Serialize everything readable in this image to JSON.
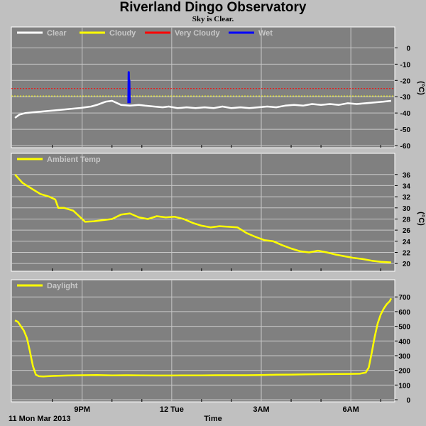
{
  "header": {
    "title": "Riverland Dingo Observatory",
    "subtitle": "Sky is Clear."
  },
  "footer": {
    "date_label": "11 Mon Mar 2013",
    "time_label": "Time"
  },
  "colors": {
    "panel_bg": "#808080",
    "grid": "#c8c8c8",
    "frame": "#c0c0c0",
    "clear": "#ffffff",
    "cloudy": "#ffff00",
    "very_cloudy": "#ff0000",
    "wet": "#0000ff",
    "temp": "#ffff00",
    "daylight": "#ffff00"
  },
  "x_axis": {
    "start_hour": 18.7,
    "end_hour": 31.4,
    "ticks": [
      {
        "hour": 21,
        "label": "9PM"
      },
      {
        "hour": 24,
        "label": "12 Tue"
      },
      {
        "hour": 27,
        "label": "3AM"
      },
      {
        "hour": 30,
        "label": "6AM"
      }
    ],
    "minor_ticks": [
      20,
      22,
      23,
      25,
      26,
      28,
      29,
      31
    ]
  },
  "chart_data": [
    {
      "type": "line",
      "title": "",
      "ylabel": "(°C)",
      "ylim": [
        -60,
        5
      ],
      "yticks": [
        0,
        -10,
        -20,
        -30,
        -40,
        -50,
        -60
      ],
      "grid": true,
      "legend": "top-left",
      "legend_entries": [
        {
          "name": "Clear",
          "color": "#ffffff"
        },
        {
          "name": "Cloudy",
          "color": "#ffff00"
        },
        {
          "name": "Very Cloudy",
          "color": "#ff0000"
        },
        {
          "name": "Wet",
          "color": "#0000ff"
        }
      ],
      "thresholds": [
        {
          "name": "Very Cloudy",
          "value": -25,
          "color": "#ff0000"
        },
        {
          "name": "Cloudy",
          "value": -29.5,
          "color": "#ffff00"
        }
      ],
      "series": [
        {
          "name": "Clear",
          "color": "#ffffff",
          "x": [
            18.75,
            18.9,
            19.1,
            19.4,
            19.7,
            20.0,
            20.3,
            20.6,
            20.9,
            21.1,
            21.3,
            21.5,
            21.8,
            22.0,
            22.3,
            22.6,
            22.9,
            23.1,
            23.4,
            23.7,
            23.9,
            24.2,
            24.5,
            24.8,
            25.1,
            25.4,
            25.7,
            26.0,
            26.3,
            26.6,
            26.9,
            27.2,
            27.5,
            27.8,
            28.1,
            28.4,
            28.7,
            29.0,
            29.3,
            29.6,
            29.9,
            30.2,
            30.5,
            30.8,
            31.1,
            31.35
          ],
          "y": [
            -43,
            -41,
            -40,
            -39.5,
            -39,
            -38.5,
            -38,
            -37.5,
            -37,
            -36.5,
            -36,
            -35,
            -33,
            -32.5,
            -35,
            -35.5,
            -35,
            -35.5,
            -36,
            -36.5,
            -36,
            -37,
            -36.5,
            -37,
            -36.5,
            -37,
            -36,
            -37,
            -36.5,
            -37,
            -36.5,
            -36,
            -36.5,
            -35.5,
            -35,
            -35.5,
            -34.5,
            -35,
            -34.5,
            -35,
            -34,
            -34.5,
            -34,
            -33.5,
            -33,
            -32.5
          ]
        },
        {
          "name": "Wet",
          "color": "#0000ff",
          "x": [
            22.55,
            22.56,
            22.57,
            22.58,
            22.59
          ],
          "y": [
            -34,
            -15,
            -28,
            -20,
            -34
          ]
        }
      ]
    },
    {
      "type": "line",
      "title": "",
      "ylabel": "(°C)",
      "ylim": [
        19,
        37.5
      ],
      "yticks": [
        20,
        22,
        24,
        26,
        28,
        30,
        32,
        34,
        36
      ],
      "grid": true,
      "legend": "top-left",
      "legend_entries": [
        {
          "name": "Ambient Temp",
          "color": "#ffff00"
        }
      ],
      "series": [
        {
          "name": "Ambient Temp",
          "color": "#ffff00",
          "x": [
            18.75,
            19.0,
            19.3,
            19.6,
            19.9,
            20.1,
            20.2,
            20.4,
            20.7,
            20.9,
            21.1,
            21.4,
            21.7,
            22.0,
            22.3,
            22.6,
            22.9,
            23.2,
            23.5,
            23.8,
            24.1,
            24.4,
            24.7,
            25.0,
            25.3,
            25.6,
            25.9,
            26.2,
            26.5,
            26.8,
            27.1,
            27.4,
            27.7,
            28.0,
            28.3,
            28.6,
            28.9,
            29.2,
            29.5,
            29.8,
            30.1,
            30.4,
            30.7,
            31.0,
            31.35
          ],
          "y": [
            36,
            34.5,
            33.5,
            32.5,
            32,
            31.5,
            30,
            30,
            29.5,
            28.5,
            27.5,
            27.6,
            27.8,
            28,
            28.8,
            29,
            28.3,
            28,
            28.5,
            28.3,
            28.4,
            28,
            27.3,
            26.8,
            26.5,
            26.7,
            26.6,
            26.5,
            25.5,
            24.8,
            24.2,
            24,
            23.3,
            22.7,
            22.2,
            22,
            22.3,
            22,
            21.6,
            21.3,
            21,
            20.8,
            20.5,
            20.3,
            20.2
          ]
        }
      ]
    },
    {
      "type": "line",
      "title": "",
      "ylabel": "",
      "ylim": [
        0,
        730
      ],
      "yticks": [
        0,
        100,
        200,
        300,
        400,
        500,
        600,
        700
      ],
      "grid": true,
      "legend": "top-left",
      "legend_entries": [
        {
          "name": "Daylight",
          "color": "#ffff00"
        }
      ],
      "series": [
        {
          "name": "Daylight",
          "color": "#ffff00",
          "x": [
            18.75,
            18.85,
            18.95,
            19.05,
            19.15,
            19.25,
            19.35,
            19.45,
            19.55,
            19.7,
            20.0,
            20.5,
            21.0,
            21.5,
            22.0,
            22.5,
            23.0,
            23.5,
            24.0,
            24.5,
            25.0,
            25.5,
            26.0,
            26.5,
            27.0,
            27.5,
            28.0,
            28.5,
            29.0,
            29.5,
            30.0,
            30.3,
            30.5,
            30.6,
            30.7,
            30.8,
            30.9,
            31.0,
            31.1,
            31.2,
            31.3,
            31.35
          ],
          "y": [
            540,
            530,
            500,
            470,
            420,
            330,
            230,
            170,
            160,
            158,
            162,
            165,
            167,
            168,
            166,
            167,
            166,
            165,
            165,
            166,
            166,
            167,
            167,
            167,
            168,
            170,
            171,
            173,
            174,
            175,
            176,
            177,
            185,
            220,
            320,
            430,
            520,
            580,
            620,
            650,
            670,
            690
          ]
        }
      ]
    }
  ]
}
